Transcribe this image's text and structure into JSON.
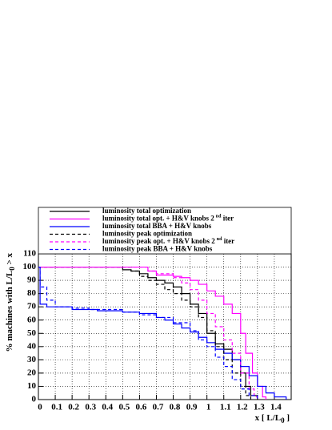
{
  "chart_data": {
    "type": "line",
    "x_label": {
      "main": "x [ L/L",
      "sub": "0",
      "end": " ]"
    },
    "y_label": {
      "main": "% machines with L/L",
      "sub": "0",
      "end": " > x"
    },
    "xlim": [
      0,
      1.5
    ],
    "ylim": [
      0,
      110
    ],
    "xticks": [
      0,
      0.1,
      0.2,
      0.3,
      0.4,
      0.5,
      0.6,
      0.7,
      0.8,
      0.9,
      1,
      1.1,
      1.2,
      1.3,
      1.4
    ],
    "yticks": [
      0,
      10,
      20,
      30,
      40,
      50,
      60,
      70,
      80,
      90,
      100,
      110
    ],
    "grid": true,
    "series": [
      {
        "name": "luminosity total optimization",
        "color": "#000000",
        "dashed": false,
        "x": [
          0,
          0.45,
          0.5,
          0.55,
          0.6,
          0.65,
          0.7,
          0.75,
          0.8,
          0.85,
          0.9,
          0.95,
          1.0,
          1.05,
          1.1,
          1.15,
          1.2,
          1.23,
          1.26,
          1.3
        ],
        "values": [
          100,
          100,
          98,
          97,
          95,
          92,
          90,
          88,
          85,
          80,
          72,
          65,
          50,
          42,
          38,
          30,
          20,
          10,
          3,
          0
        ]
      },
      {
        "name": {
          "main": "luminosity total opt. + H&V knobs 2",
          "sup": "nd",
          "end": " iter"
        },
        "color": "#ff00ff",
        "dashed": false,
        "x": [
          0,
          0.6,
          0.65,
          0.7,
          0.8,
          0.85,
          0.9,
          0.95,
          1.0,
          1.05,
          1.1,
          1.15,
          1.2,
          1.23,
          1.27,
          1.3,
          1.33,
          1.35
        ],
        "values": [
          100,
          100,
          97,
          94,
          93,
          92,
          90,
          87,
          82,
          78,
          72,
          65,
          50,
          35,
          20,
          10,
          2,
          0
        ]
      },
      {
        "name": "luminosity total BBA + H&V knobs",
        "color": "#0000ff",
        "dashed": false,
        "x": [
          0,
          0.01,
          0.05,
          0.2,
          0.35,
          0.5,
          0.6,
          0.7,
          0.75,
          0.8,
          0.85,
          0.9,
          0.95,
          1.0,
          1.05,
          1.1,
          1.15,
          1.2,
          1.25,
          1.3,
          1.35,
          1.4,
          1.47
        ],
        "values": [
          100,
          72,
          70,
          68,
          67,
          66,
          65,
          62,
          60,
          57,
          54,
          51,
          47,
          43,
          38,
          35,
          30,
          25,
          18,
          10,
          5,
          2,
          0
        ]
      },
      {
        "name": "luminosity peak optimization",
        "color": "#000000",
        "dashed": true,
        "x": [
          0,
          0.5,
          0.55,
          0.6,
          0.65,
          0.7,
          0.75,
          0.8,
          0.85,
          0.9,
          0.95,
          1.0,
          1.05,
          1.1,
          1.15,
          1.2,
          1.23,
          1.26
        ],
        "values": [
          100,
          100,
          97,
          93,
          90,
          87,
          83,
          80,
          75,
          70,
          62,
          52,
          40,
          30,
          20,
          10,
          3,
          0
        ]
      },
      {
        "name": {
          "main": "luminosity peak opt. + H&V knobs 2",
          "sup": "nd",
          "end": " iter"
        },
        "color": "#ff00ff",
        "dashed": true,
        "x": [
          0,
          0.6,
          0.65,
          0.7,
          0.8,
          0.85,
          0.9,
          0.95,
          1.0,
          1.05,
          1.1,
          1.15,
          1.2,
          1.25,
          1.28,
          1.3
        ],
        "values": [
          100,
          100,
          97,
          95,
          92,
          88,
          83,
          75,
          65,
          55,
          45,
          35,
          20,
          8,
          2,
          0
        ]
      },
      {
        "name": "luminosity peak BBA + H&V knobs",
        "color": "#0000ff",
        "dashed": true,
        "x": [
          0,
          0.01,
          0.05,
          0.1,
          0.2,
          0.3,
          0.5,
          0.6,
          0.7,
          0.8,
          0.9,
          0.95,
          1.0,
          1.05,
          1.1,
          1.15,
          1.2,
          1.25,
          1.3
        ],
        "values": [
          100,
          85,
          75,
          70,
          69,
          68,
          66,
          64,
          62,
          58,
          52,
          45,
          40,
          32,
          25,
          15,
          8,
          3,
          0
        ]
      }
    ]
  }
}
